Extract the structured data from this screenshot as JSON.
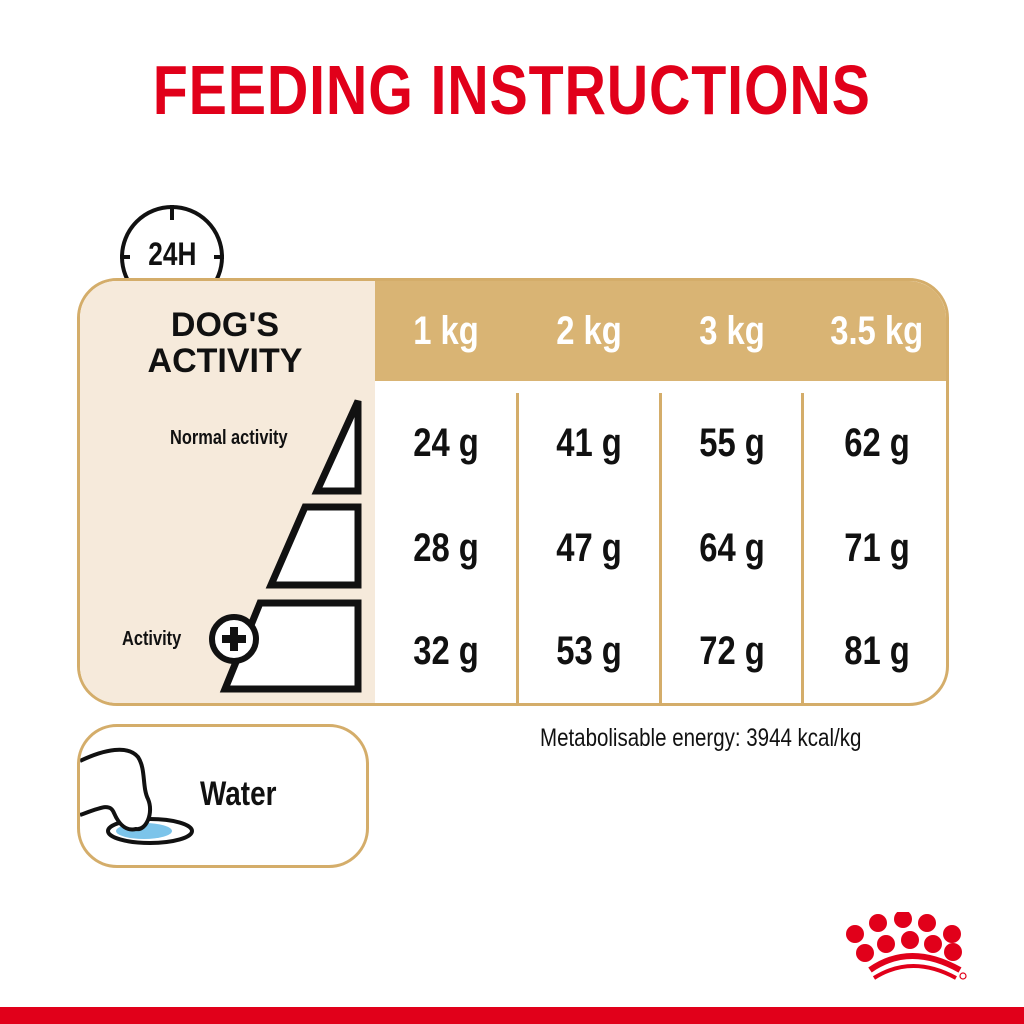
{
  "title": "FEEDING INSTRUCTIONS",
  "clock_icon_label": "24H",
  "table": {
    "corner_title_line1": "DOG'S",
    "corner_title_line2": "ACTIVITY",
    "columns": [
      "1 kg",
      "2 kg",
      "3 kg",
      "3.5 kg"
    ],
    "rows": [
      {
        "label": "Normal activity",
        "values": [
          "24 g",
          "41 g",
          "55 g",
          "62 g"
        ]
      },
      {
        "label": "",
        "values": [
          "28 g",
          "47 g",
          "64 g",
          "71 g"
        ]
      },
      {
        "label": "Activity",
        "values": [
          "32 g",
          "53 g",
          "72 g",
          "81 g"
        ]
      }
    ]
  },
  "energy": "Metabolisable energy: 3944 kcal/kg",
  "water_label": "Water",
  "logo": "Royal Canin crown",
  "colors": {
    "brand_red": "#e1001a",
    "gold": "#d9b474",
    "cream": "#f6eadb",
    "water_blue": "#7cc4ea"
  }
}
